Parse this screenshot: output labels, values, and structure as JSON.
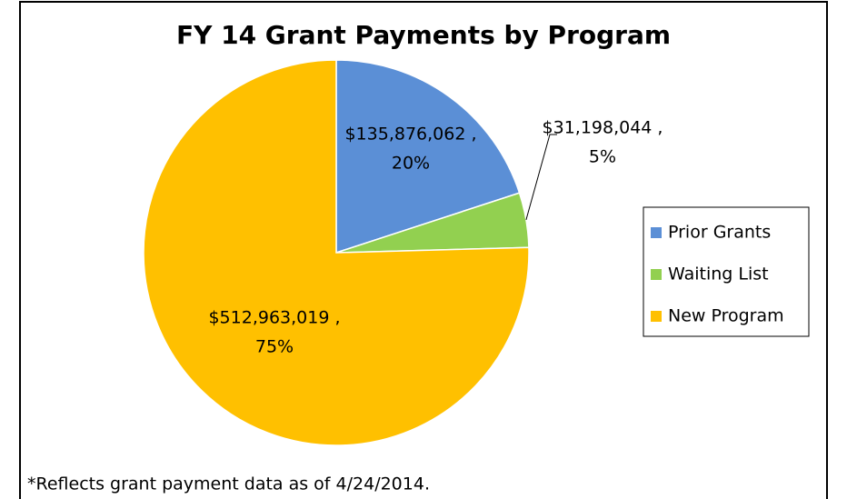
{
  "chart_data": {
    "type": "pie",
    "title": "FY 14 Grant Payments by Program",
    "categories": [
      "Prior Grants",
      "Waiting List",
      "New Program"
    ],
    "values": [
      135876062,
      31198044,
      512963019
    ],
    "value_labels": [
      [
        "$135,876,062 ,",
        "20%"
      ],
      [
        "$31,198,044 ,",
        "5%"
      ],
      [
        "$512,963,019 ,",
        "75%"
      ]
    ],
    "colors": [
      "#5b8fd6",
      "#92d050",
      "#ffc000"
    ],
    "legend": "right",
    "annotation": "*Reflects grant payment data as of 4/24/2014."
  }
}
